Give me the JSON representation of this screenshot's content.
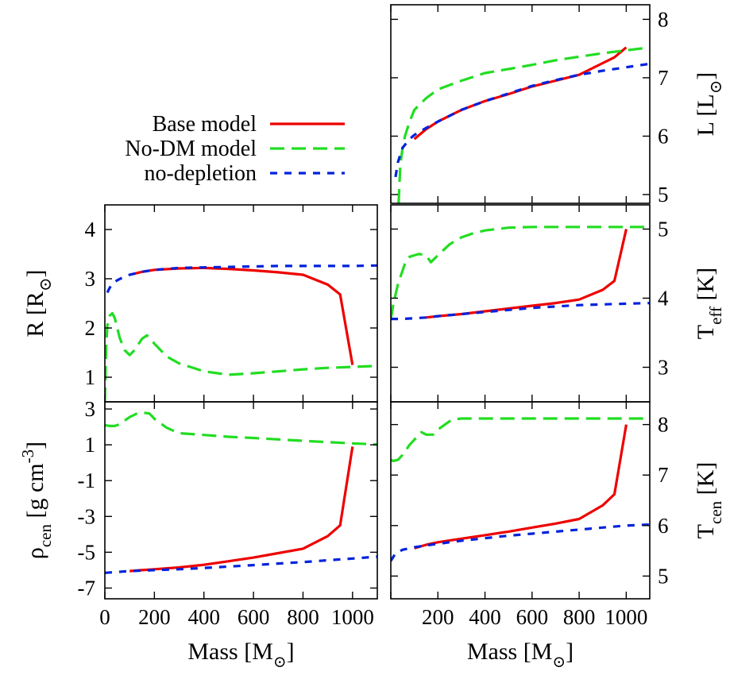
{
  "colors": {
    "base_model": "#ee0000",
    "no_dm_model": "#22dd22",
    "no_depletion": "#0022dd"
  },
  "legend": [
    {
      "key": "base",
      "label": "Base model",
      "color": "#ee0000",
      "dash": "solid"
    },
    {
      "key": "nodm",
      "label": "No-DM model",
      "color": "#22dd22",
      "dash": "long-dash"
    },
    {
      "key": "nodep",
      "label": "no-depletion",
      "color": "#0022dd",
      "dash": "short-dash"
    }
  ],
  "chart_data": [
    {
      "id": "L",
      "type": "line",
      "xlabel": "",
      "ylabel": {
        "base": "L [L",
        "sub": "⊙",
        "close": "]"
      },
      "xlim": [
        0,
        1100
      ],
      "ylim": [
        4.85,
        8.25
      ],
      "yticks": [
        5,
        6,
        7,
        8
      ],
      "xticks": [],
      "ytick_side": "right",
      "series": [
        {
          "key": "base",
          "x": [
            100,
            150,
            200,
            300,
            400,
            500,
            600,
            700,
            800,
            900,
            950,
            1000
          ],
          "y": [
            5.95,
            6.12,
            6.25,
            6.45,
            6.6,
            6.72,
            6.85,
            6.95,
            7.05,
            7.25,
            7.35,
            7.52
          ]
        },
        {
          "key": "nodm",
          "x": [
            33,
            40,
            50,
            60,
            80,
            100,
            150,
            200,
            300,
            400,
            500,
            600,
            700,
            800,
            900,
            1000,
            1100
          ],
          "y": [
            4.85,
            5.5,
            5.8,
            6.0,
            6.25,
            6.45,
            6.65,
            6.8,
            6.95,
            7.08,
            7.15,
            7.22,
            7.3,
            7.36,
            7.42,
            7.47,
            7.52
          ]
        },
        {
          "key": "nodep",
          "x": [
            20,
            30,
            50,
            80,
            100,
            150,
            200,
            300,
            400,
            500,
            600,
            700,
            800,
            900,
            1000,
            1100
          ],
          "y": [
            5.3,
            5.55,
            5.8,
            5.95,
            6.02,
            6.14,
            6.25,
            6.45,
            6.6,
            6.73,
            6.86,
            6.96,
            7.05,
            7.12,
            7.18,
            7.24
          ]
        }
      ]
    },
    {
      "id": "R",
      "type": "line",
      "xlabel": "",
      "ylabel": {
        "base": "R [R",
        "sub": "⊙",
        "close": "]"
      },
      "xlim": [
        0,
        1100
      ],
      "ylim": [
        0.5,
        4.5
      ],
      "yticks": [
        1,
        2,
        3,
        4
      ],
      "xticks": [],
      "ytick_side": "left",
      "series": [
        {
          "key": "base",
          "x": [
            100,
            150,
            200,
            300,
            400,
            500,
            600,
            700,
            800,
            900,
            950,
            1000
          ],
          "y": [
            3.08,
            3.14,
            3.18,
            3.21,
            3.22,
            3.2,
            3.17,
            3.13,
            3.08,
            2.88,
            2.68,
            1.25
          ]
        },
        {
          "key": "nodm",
          "x": [
            0,
            5,
            10,
            20,
            30,
            40,
            50,
            60,
            80,
            100,
            120,
            150,
            170,
            180,
            200,
            250,
            300,
            400,
            500,
            600,
            700,
            800,
            900,
            1000,
            1100
          ],
          "y": [
            0.5,
            1.6,
            2.05,
            2.25,
            2.3,
            2.2,
            2.0,
            1.8,
            1.55,
            1.45,
            1.55,
            1.78,
            1.85,
            1.8,
            1.68,
            1.42,
            1.28,
            1.12,
            1.05,
            1.08,
            1.12,
            1.16,
            1.19,
            1.21,
            1.23
          ]
        },
        {
          "key": "nodep",
          "x": [
            10,
            20,
            30,
            50,
            70,
            100,
            150,
            200,
            300,
            400,
            500,
            600,
            700,
            800,
            900,
            1000,
            1100
          ],
          "y": [
            2.72,
            2.82,
            2.9,
            2.97,
            3.02,
            3.08,
            3.14,
            3.18,
            3.22,
            3.23,
            3.24,
            3.25,
            3.26,
            3.26,
            3.26,
            3.26,
            3.27
          ]
        }
      ]
    },
    {
      "id": "Teff",
      "type": "line",
      "xlabel": "",
      "ylabel": {
        "base": "T",
        "sub": "eff",
        "close": " [K]"
      },
      "xlim": [
        0,
        1100
      ],
      "ylim": [
        2.5,
        5.35
      ],
      "yticks": [
        3,
        4,
        5
      ],
      "xticks": [],
      "ytick_side": "right",
      "series": [
        {
          "key": "base",
          "x": [
            150,
            200,
            300,
            400,
            500,
            600,
            700,
            800,
            900,
            950,
            1000
          ],
          "y": [
            3.72,
            3.74,
            3.77,
            3.81,
            3.85,
            3.89,
            3.93,
            3.98,
            4.12,
            4.25,
            5.0
          ]
        },
        {
          "key": "nodm",
          "x": [
            0,
            10,
            20,
            30,
            40,
            50,
            60,
            80,
            100,
            120,
            150,
            170,
            200,
            250,
            300,
            350,
            400,
            500,
            600,
            700,
            800,
            900,
            1000,
            1100
          ],
          "y": [
            3.7,
            3.9,
            4.05,
            4.2,
            4.3,
            4.4,
            4.5,
            4.6,
            4.62,
            4.64,
            4.62,
            4.52,
            4.62,
            4.78,
            4.88,
            4.94,
            4.98,
            5.02,
            5.03,
            5.03,
            5.03,
            5.03,
            5.03,
            5.03
          ]
        },
        {
          "key": "nodep",
          "x": [
            0,
            50,
            100,
            150,
            200,
            300,
            400,
            500,
            600,
            700,
            800,
            900,
            1000,
            1100
          ],
          "y": [
            3.7,
            3.7,
            3.71,
            3.72,
            3.74,
            3.77,
            3.8,
            3.83,
            3.86,
            3.88,
            3.9,
            3.91,
            3.92,
            3.93
          ]
        }
      ]
    },
    {
      "id": "rho",
      "type": "line",
      "xlabel": "Mass [M",
      "xlabel_sub": "⊙",
      "xlabel_close": "]",
      "ylabel": {
        "base": "ρ",
        "sub": "cen",
        "close": " [g cm",
        "sup": "-3",
        "end": "]"
      },
      "xlim": [
        0,
        1100
      ],
      "ylim": [
        -7.6,
        3.4
      ],
      "yticks": [
        -7,
        -5,
        -3,
        -1,
        1,
        3
      ],
      "xticks": [
        0,
        200,
        400,
        600,
        800,
        1000
      ],
      "ytick_side": "left",
      "series": [
        {
          "key": "base",
          "x": [
            100,
            150,
            200,
            300,
            400,
            500,
            600,
            700,
            800,
            900,
            950,
            1000
          ],
          "y": [
            -6.05,
            -6.0,
            -5.95,
            -5.85,
            -5.7,
            -5.5,
            -5.3,
            -5.05,
            -4.8,
            -4.1,
            -3.5,
            0.9
          ]
        },
        {
          "key": "nodm",
          "x": [
            0,
            20,
            40,
            60,
            80,
            100,
            130,
            150,
            180,
            200,
            250,
            300,
            400,
            500,
            600,
            700,
            800,
            900,
            1000,
            1100
          ],
          "y": [
            2.1,
            2.05,
            2.05,
            2.15,
            2.35,
            2.55,
            2.75,
            2.8,
            2.75,
            2.45,
            1.95,
            1.65,
            1.55,
            1.45,
            1.38,
            1.3,
            1.22,
            1.15,
            1.08,
            1.02
          ]
        },
        {
          "key": "nodep",
          "x": [
            0,
            100,
            200,
            300,
            400,
            500,
            600,
            700,
            800,
            900,
            1000,
            1100
          ],
          "y": [
            -6.15,
            -6.05,
            -6.0,
            -5.95,
            -5.88,
            -5.8,
            -5.72,
            -5.63,
            -5.55,
            -5.45,
            -5.35,
            -5.25
          ]
        }
      ]
    },
    {
      "id": "Tcen",
      "type": "line",
      "xlabel": "Mass [M",
      "xlabel_sub": "⊙",
      "xlabel_close": "]",
      "ylabel": {
        "base": "T",
        "sub": "cen",
        "close": " [K]"
      },
      "xlim": [
        0,
        1100
      ],
      "ylim": [
        4.55,
        8.45
      ],
      "yticks": [
        5,
        6,
        7,
        8
      ],
      "xticks": [
        200,
        400,
        600,
        800,
        1000
      ],
      "ytick_side": "right",
      "series": [
        {
          "key": "base",
          "x": [
            100,
            150,
            200,
            300,
            400,
            500,
            600,
            700,
            800,
            900,
            950,
            1000
          ],
          "y": [
            5.55,
            5.62,
            5.67,
            5.74,
            5.81,
            5.88,
            5.96,
            6.04,
            6.13,
            6.4,
            6.62,
            8.0
          ]
        },
        {
          "key": "nodm",
          "x": [
            0,
            10,
            30,
            50,
            80,
            100,
            130,
            150,
            180,
            200,
            230,
            260,
            300,
            400,
            500,
            600,
            700,
            800,
            900,
            1000,
            1100
          ],
          "y": [
            7.3,
            7.28,
            7.3,
            7.4,
            7.6,
            7.7,
            7.85,
            7.8,
            7.8,
            7.9,
            8.0,
            8.1,
            8.12,
            8.12,
            8.12,
            8.12,
            8.12,
            8.12,
            8.12,
            8.12,
            8.12
          ]
        },
        {
          "key": "nodep",
          "x": [
            0,
            20,
            50,
            100,
            200,
            300,
            400,
            500,
            600,
            700,
            800,
            900,
            1000,
            1100
          ],
          "y": [
            5.3,
            5.45,
            5.52,
            5.57,
            5.64,
            5.7,
            5.75,
            5.8,
            5.84,
            5.88,
            5.92,
            5.96,
            6.0,
            6.02
          ]
        }
      ]
    }
  ]
}
